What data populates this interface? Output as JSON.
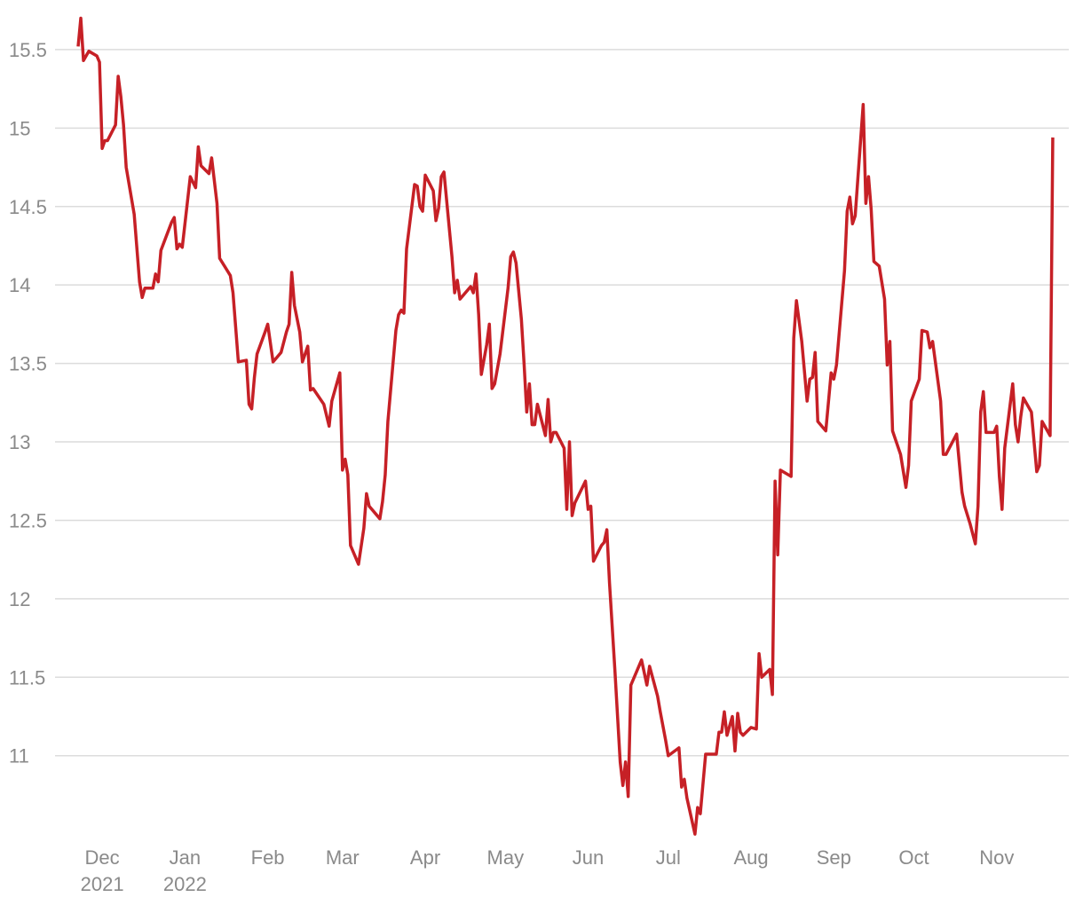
{
  "chart_data": {
    "type": "line",
    "color": "#c62026",
    "grid": true,
    "x": [
      -9,
      -8,
      -7,
      -5,
      -2,
      -1,
      0,
      1,
      2,
      5,
      6,
      7,
      8,
      9,
      12,
      14,
      15,
      16,
      19,
      20,
      21,
      22,
      26,
      27,
      28,
      29,
      30,
      33,
      35,
      36,
      37,
      40,
      41,
      43,
      44,
      48,
      49,
      51,
      54,
      55,
      56,
      57,
      58,
      61,
      62,
      64,
      67,
      69,
      70,
      71,
      72,
      74,
      75,
      77,
      78,
      79,
      83,
      85,
      86,
      89,
      90,
      91,
      92,
      93,
      96,
      98,
      99,
      100,
      104,
      105,
      106,
      107,
      110,
      111,
      112,
      113,
      114,
      117,
      118,
      119,
      120,
      121,
      124,
      125,
      126,
      127,
      128,
      131,
      132,
      133,
      134,
      138,
      139,
      140,
      141,
      142,
      144,
      145,
      146,
      147,
      149,
      152,
      153,
      154,
      155,
      157,
      158,
      159,
      160,
      161,
      162,
      163,
      166,
      167,
      168,
      169,
      170,
      173,
      174,
      175,
      176,
      177,
      181,
      182,
      183,
      184,
      187,
      188,
      189,
      190,
      192,
      194,
      195,
      196,
      197,
      198,
      202,
      204,
      205,
      208,
      209,
      211,
      212,
      216,
      217,
      218,
      219,
      222,
      223,
      224,
      226,
      230,
      231,
      232,
      233,
      234,
      236,
      237,
      238,
      239,
      240,
      243,
      245,
      246,
      247,
      250,
      251,
      252,
      253,
      254,
      258,
      259,
      260,
      262,
      264,
      265,
      266,
      267,
      268,
      271,
      273,
      274,
      275,
      278,
      279,
      280,
      281,
      282,
      285,
      286,
      287,
      288,
      289,
      291,
      293,
      294,
      295,
      296,
      299,
      301,
      302,
      303,
      306,
      307,
      309,
      310,
      311,
      314,
      315,
      316,
      320,
      322,
      323,
      325,
      327,
      328,
      329,
      330,
      331,
      334,
      335,
      336,
      337,
      338,
      341,
      342,
      343,
      344,
      345,
      348,
      350,
      351,
      352,
      355,
      356
    ],
    "values": [
      15.52,
      15.7,
      15.43,
      15.49,
      15.46,
      15.42,
      14.87,
      14.92,
      14.92,
      15.02,
      15.33,
      15.2,
      15.02,
      14.75,
      14.45,
      14.02,
      13.92,
      13.98,
      13.98,
      14.07,
      14.02,
      14.22,
      14.4,
      14.43,
      14.23,
      14.26,
      14.24,
      14.69,
      14.62,
      14.88,
      14.76,
      14.71,
      14.81,
      14.52,
      14.17,
      14.06,
      13.95,
      13.51,
      13.52,
      13.24,
      13.21,
      13.41,
      13.56,
      13.7,
      13.75,
      13.51,
      13.57,
      13.7,
      13.75,
      14.08,
      13.87,
      13.7,
      13.51,
      13.61,
      13.33,
      13.34,
      13.24,
      13.1,
      13.26,
      13.44,
      12.82,
      12.89,
      12.79,
      12.34,
      12.22,
      12.45,
      12.67,
      12.59,
      12.51,
      12.62,
      12.79,
      13.13,
      13.71,
      13.81,
      13.84,
      13.82,
      14.23,
      14.64,
      14.63,
      14.5,
      14.47,
      14.7,
      14.6,
      14.41,
      14.49,
      14.69,
      14.72,
      14.18,
      13.95,
      14.03,
      13.91,
      13.99,
      13.95,
      14.07,
      13.81,
      13.43,
      13.62,
      13.75,
      13.34,
      13.37,
      13.56,
      13.98,
      14.18,
      14.21,
      14.14,
      13.78,
      13.5,
      13.19,
      13.37,
      13.11,
      13.11,
      13.24,
      13.04,
      13.27,
      13.0,
      13.06,
      13.06,
      12.96,
      12.57,
      13.0,
      12.53,
      12.61,
      12.75,
      12.57,
      12.59,
      12.24,
      12.34,
      12.36,
      12.44,
      12.1,
      11.55,
      10.96,
      10.81,
      10.96,
      10.74,
      11.45,
      11.61,
      11.45,
      11.57,
      11.38,
      11.28,
      11.1,
      11.0,
      11.05,
      10.8,
      10.85,
      10.73,
      10.5,
      10.67,
      10.63,
      11.01,
      11.01,
      11.15,
      11.15,
      11.28,
      11.13,
      11.25,
      11.03,
      11.27,
      11.15,
      11.13,
      11.18,
      11.17,
      11.65,
      11.5,
      11.55,
      11.39,
      12.75,
      12.28,
      12.82,
      12.78,
      13.66,
      13.9,
      13.64,
      13.26,
      13.4,
      13.41,
      13.57,
      13.13,
      13.07,
      13.44,
      13.4,
      13.49,
      14.09,
      14.47,
      14.56,
      14.39,
      14.44,
      15.15,
      14.52,
      14.69,
      14.48,
      14.15,
      14.12,
      13.91,
      13.49,
      13.64,
      13.07,
      12.92,
      12.71,
      12.85,
      13.26,
      13.4,
      13.71,
      13.7,
      13.6,
      13.64,
      13.26,
      12.92,
      12.92,
      13.05,
      12.68,
      12.59,
      12.48,
      12.35,
      12.59,
      13.19,
      13.32,
      13.06,
      13.06,
      13.1,
      12.78,
      12.57,
      12.96,
      13.37,
      13.11,
      13.0,
      13.16,
      13.28,
      13.19,
      12.81,
      12.85,
      13.13,
      13.04,
      14.94
    ],
    "xlim": [
      -11,
      362
    ],
    "xticks": [
      {
        "value": 0,
        "label": "Dec 2021"
      },
      {
        "value": 31,
        "label": "Jan 2022"
      },
      {
        "value": 62,
        "label": "Feb"
      },
      {
        "value": 90,
        "label": "Mar"
      },
      {
        "value": 121,
        "label": "Apr"
      },
      {
        "value": 151,
        "label": "May"
      },
      {
        "value": 182,
        "label": "Jun"
      },
      {
        "value": 212,
        "label": "Jul"
      },
      {
        "value": 243,
        "label": "Aug"
      },
      {
        "value": 274,
        "label": "Sep"
      },
      {
        "value": 304,
        "label": "Oct"
      },
      {
        "value": 335,
        "label": "Nov"
      }
    ],
    "ylim": [
      10.45,
      15.72
    ],
    "yticks": [
      11,
      11.5,
      12,
      12.5,
      13,
      13.5,
      14,
      14.5,
      15,
      15.5
    ]
  }
}
